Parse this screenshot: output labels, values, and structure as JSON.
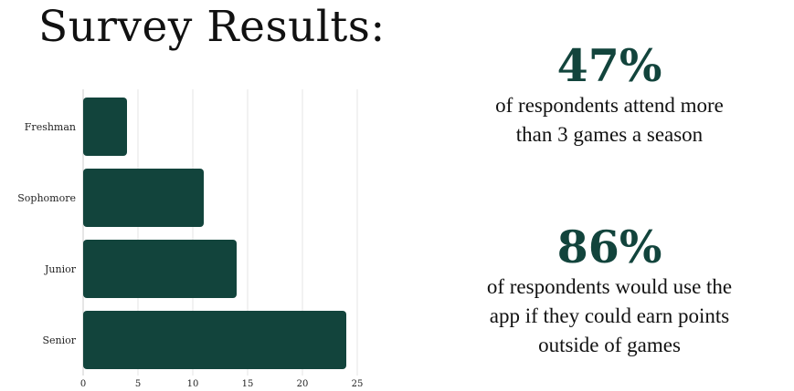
{
  "title": "Survey Results:",
  "stats": [
    {
      "value": "47%",
      "text_lines": [
        "of respondents attend more",
        "than 3 games a season"
      ]
    },
    {
      "value": "86%",
      "text_lines": [
        "of respondents would use the",
        "app if they could earn points",
        "outside of games"
      ]
    }
  ],
  "chart_data": {
    "type": "bar",
    "orientation": "horizontal",
    "categories": [
      "Freshman",
      "Sophomore",
      "Junior",
      "Senior"
    ],
    "values": [
      4,
      11,
      14,
      24
    ],
    "xlim": [
      0,
      25
    ],
    "xticks": [
      0,
      5,
      10,
      15,
      20,
      25
    ],
    "grid": true,
    "bar_color": "#12443c"
  }
}
